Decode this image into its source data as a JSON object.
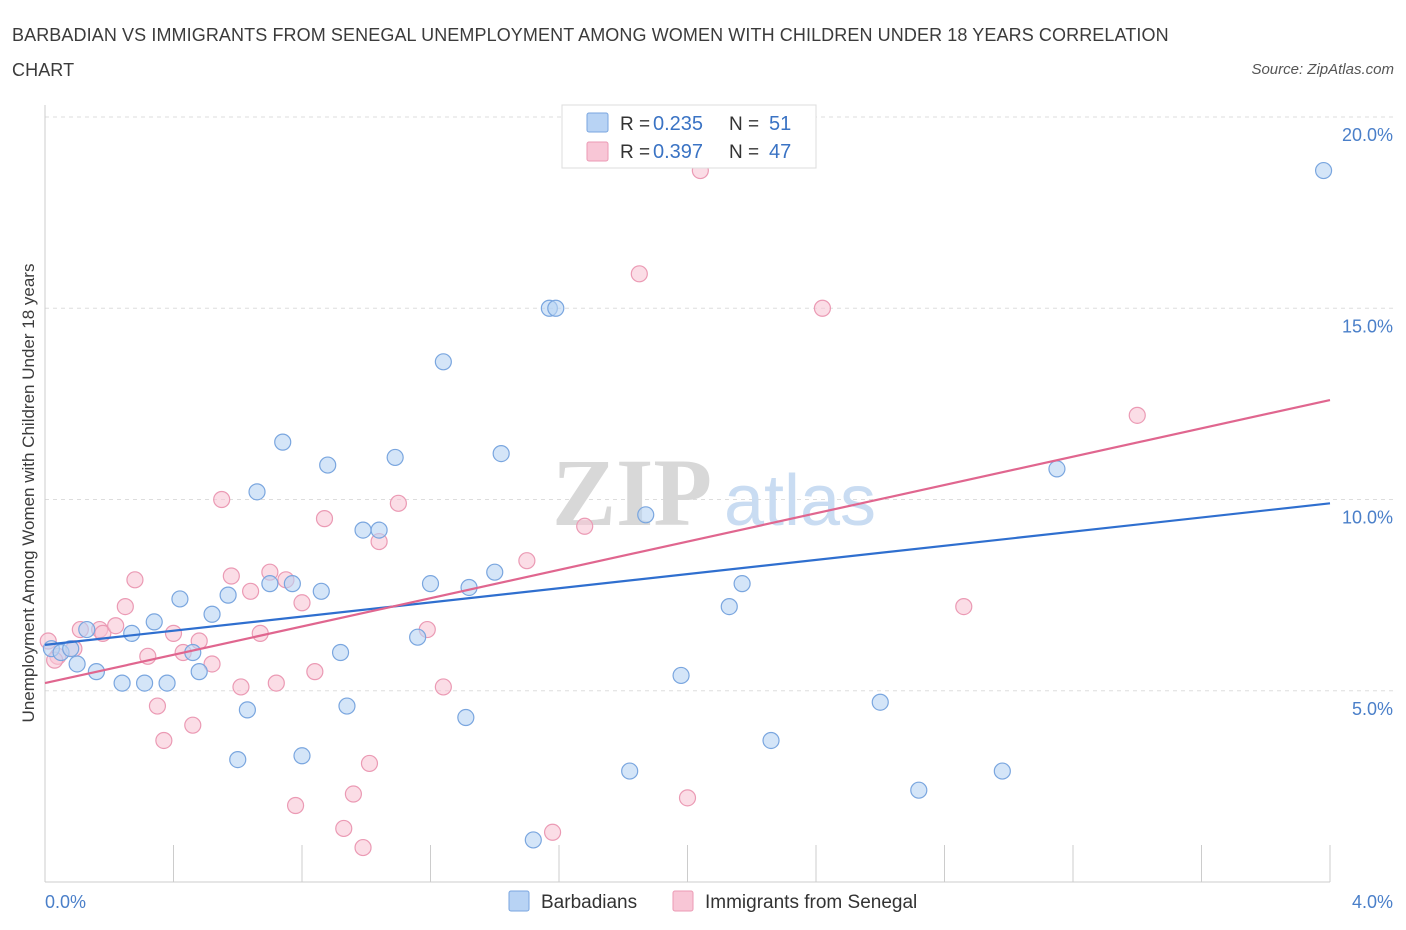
{
  "title": "BARBADIAN VS IMMIGRANTS FROM SENEGAL UNEMPLOYMENT AMONG WOMEN WITH CHILDREN UNDER 18 YEARS CORRELATION CHART",
  "source": "Source: ZipAtlas.com",
  "watermark": {
    "zip": "ZIP",
    "atlas": "atlas"
  },
  "colors": {
    "blue_fill": "#b8d3f4",
    "blue_stroke": "#7aa6df",
    "blue_line": "#2f6fcf",
    "pink_fill": "#f8c6d6",
    "pink_stroke": "#eb9ab4",
    "pink_line": "#e0668f",
    "grid": "#dddddd",
    "tick_text": "#4a7fc9"
  },
  "legend_top": {
    "rows": [
      {
        "r_label": "R = ",
        "r_value": "0.235",
        "n_label": "N = ",
        "n_value": "51",
        "color": "blue"
      },
      {
        "r_label": "R = ",
        "r_value": "0.397",
        "n_label": "N = ",
        "n_value": "47",
        "color": "pink"
      }
    ]
  },
  "chart_data": {
    "type": "scatter",
    "title": "BARBADIAN VS IMMIGRANTS FROM SENEGAL UNEMPLOYMENT AMONG WOMEN WITH CHILDREN UNDER 18 YEARS CORRELATION CHART",
    "xlabel": "",
    "ylabel": "Unemployment Among Women with Children Under 18 years",
    "xlim": [
      0,
      4.0
    ],
    "ylim": [
      0,
      20.0
    ],
    "x_tick_labels": [
      "0.0%",
      "4.0%"
    ],
    "y_ticks": [
      5.0,
      10.0,
      15.0,
      20.0
    ],
    "y_tick_labels": [
      "5.0%",
      "10.0%",
      "15.0%",
      "20.0%"
    ],
    "grid": true,
    "legend_position": "bottom",
    "series": [
      {
        "name": "Barbadians",
        "r": 0.235,
        "n": 51,
        "trend": {
          "x": [
            0.0,
            4.0
          ],
          "y": [
            6.2,
            9.9
          ]
        },
        "points": [
          [
            0.02,
            6.1
          ],
          [
            0.05,
            6.0
          ],
          [
            0.08,
            6.1
          ],
          [
            0.1,
            5.7
          ],
          [
            0.13,
            6.6
          ],
          [
            0.16,
            5.5
          ],
          [
            0.24,
            5.2
          ],
          [
            0.27,
            6.5
          ],
          [
            0.31,
            5.2
          ],
          [
            0.34,
            6.8
          ],
          [
            0.38,
            5.2
          ],
          [
            0.42,
            7.4
          ],
          [
            0.46,
            6.0
          ],
          [
            0.48,
            5.5
          ],
          [
            0.52,
            7.0
          ],
          [
            0.57,
            7.5
          ],
          [
            0.6,
            3.2
          ],
          [
            0.63,
            4.5
          ],
          [
            0.66,
            10.2
          ],
          [
            0.7,
            7.8
          ],
          [
            0.74,
            11.5
          ],
          [
            0.77,
            7.8
          ],
          [
            0.8,
            3.3
          ],
          [
            0.86,
            7.6
          ],
          [
            0.88,
            10.9
          ],
          [
            0.92,
            6.0
          ],
          [
            0.94,
            4.6
          ],
          [
            0.99,
            9.2
          ],
          [
            1.04,
            9.2
          ],
          [
            1.09,
            11.1
          ],
          [
            1.16,
            6.4
          ],
          [
            1.2,
            7.8
          ],
          [
            1.24,
            13.6
          ],
          [
            1.31,
            4.3
          ],
          [
            1.32,
            7.7
          ],
          [
            1.4,
            8.1
          ],
          [
            1.42,
            11.2
          ],
          [
            1.52,
            1.1
          ],
          [
            1.57,
            15.0
          ],
          [
            1.59,
            15.0
          ],
          [
            1.82,
            2.9
          ],
          [
            1.87,
            9.6
          ],
          [
            1.98,
            5.4
          ],
          [
            2.13,
            7.2
          ],
          [
            2.17,
            7.8
          ],
          [
            2.26,
            3.7
          ],
          [
            2.6,
            4.7
          ],
          [
            2.72,
            2.4
          ],
          [
            2.98,
            2.9
          ],
          [
            3.15,
            10.8
          ],
          [
            3.98,
            18.6
          ]
        ]
      },
      {
        "name": "Immigrants from Senegal",
        "r": 0.397,
        "n": 47,
        "trend": {
          "x": [
            0.0,
            4.0
          ],
          "y": [
            5.2,
            12.6
          ]
        },
        "points": [
          [
            0.01,
            6.3
          ],
          [
            0.04,
            5.9
          ],
          [
            0.09,
            6.1
          ],
          [
            0.11,
            6.6
          ],
          [
            0.17,
            6.6
          ],
          [
            0.18,
            6.5
          ],
          [
            0.22,
            6.7
          ],
          [
            0.25,
            7.2
          ],
          [
            0.28,
            7.9
          ],
          [
            0.32,
            5.9
          ],
          [
            0.35,
            4.6
          ],
          [
            0.37,
            3.7
          ],
          [
            0.4,
            6.5
          ],
          [
            0.43,
            6.0
          ],
          [
            0.46,
            4.1
          ],
          [
            0.48,
            6.3
          ],
          [
            0.52,
            5.7
          ],
          [
            0.55,
            10.0
          ],
          [
            0.58,
            8.0
          ],
          [
            0.61,
            5.1
          ],
          [
            0.64,
            7.6
          ],
          [
            0.67,
            6.5
          ],
          [
            0.7,
            8.1
          ],
          [
            0.72,
            5.2
          ],
          [
            0.75,
            7.9
          ],
          [
            0.78,
            2.0
          ],
          [
            0.8,
            7.3
          ],
          [
            0.84,
            5.5
          ],
          [
            0.87,
            9.5
          ],
          [
            0.93,
            1.4
          ],
          [
            0.96,
            2.3
          ],
          [
            0.99,
            0.9
          ],
          [
            1.01,
            3.1
          ],
          [
            1.04,
            8.9
          ],
          [
            1.1,
            9.9
          ],
          [
            1.19,
            6.6
          ],
          [
            1.24,
            5.1
          ],
          [
            1.5,
            8.4
          ],
          [
            1.58,
            1.3
          ],
          [
            1.68,
            9.3
          ],
          [
            1.85,
            15.9
          ],
          [
            2.0,
            2.2
          ],
          [
            2.04,
            18.6
          ],
          [
            2.42,
            15.0
          ],
          [
            2.86,
            7.2
          ],
          [
            3.4,
            12.2
          ],
          [
            0.03,
            5.8
          ]
        ]
      }
    ]
  }
}
